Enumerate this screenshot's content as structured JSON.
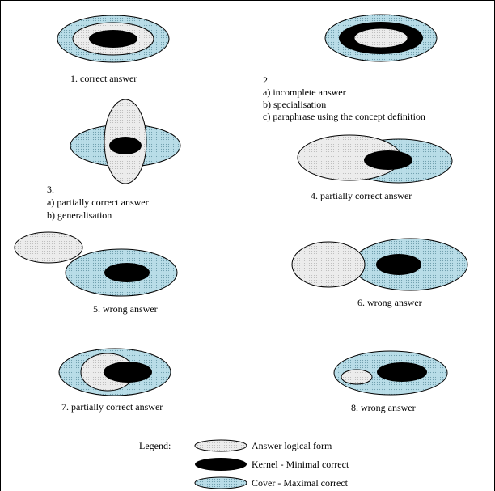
{
  "colors": {
    "cover_fill": "#b9dde8",
    "answer_fill": "#e6e6e6",
    "kernel_fill": "#000000",
    "stroke": "#000000"
  },
  "panels": [
    {
      "caption": "1. correct answer"
    },
    {
      "caption": "2.",
      "items": [
        "a) incomplete answer",
        "b) specialisation",
        "c) paraphrase using the concept definition"
      ]
    },
    {
      "caption": "3.",
      "items": [
        "a) partially correct answer",
        "b) generalisation"
      ]
    },
    {
      "caption": "4. partially correct answer"
    },
    {
      "caption": "5. wrong answer"
    },
    {
      "caption": "6. wrong answer"
    },
    {
      "caption": "7. partially correct answer"
    },
    {
      "caption": "8. wrong answer"
    }
  ],
  "legend": {
    "title": "Legend:",
    "items": [
      {
        "label": "Answer logical form",
        "shape": "answer"
      },
      {
        "label": "Kernel - Minimal correct",
        "shape": "kernel"
      },
      {
        "label": "Cover - Maximal correct",
        "shape": "cover"
      }
    ]
  }
}
